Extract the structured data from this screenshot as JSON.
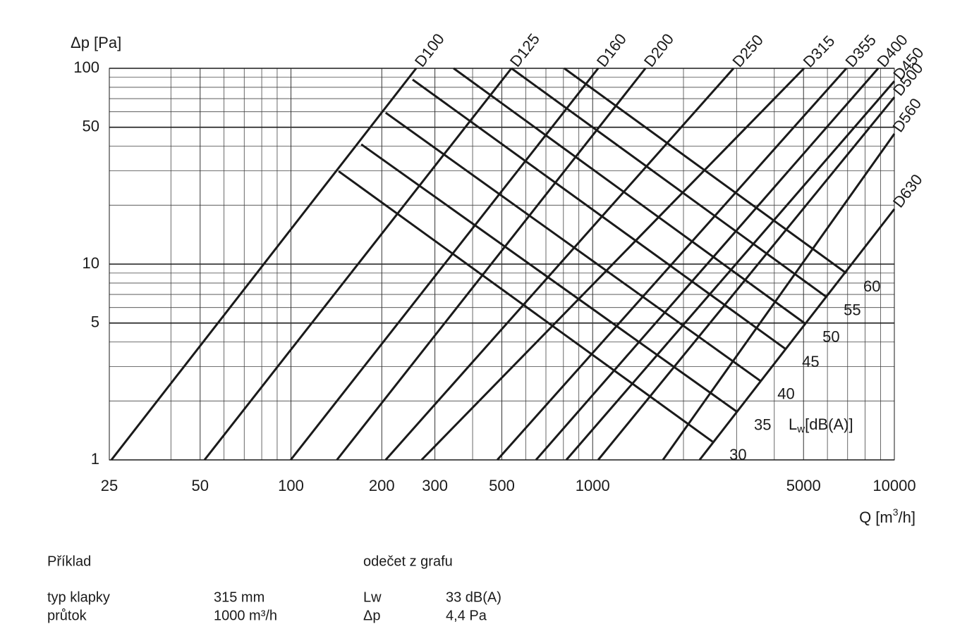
{
  "chart_data": {
    "type": "nomogram",
    "y_label": "Δp [Pa]",
    "x_label": {
      "main": "Q [m",
      "sup": "3",
      "rest": "/h]"
    },
    "xscale": "log",
    "yscale": "log",
    "xlim": [
      25,
      10000
    ],
    "ylim": [
      1,
      100
    ],
    "xticks": [
      25,
      50,
      100,
      200,
      300,
      500,
      1000,
      5000,
      10000
    ],
    "yticks": [
      1,
      5,
      10,
      50,
      100
    ],
    "xgrid": [
      40,
      60,
      70,
      80,
      90,
      400,
      600,
      700,
      800,
      900,
      2000,
      3000,
      4000,
      6000,
      7000,
      8000,
      9000
    ],
    "ygrid": [
      2,
      3,
      4,
      6,
      7,
      8,
      9,
      20,
      30,
      40,
      60,
      70,
      80,
      90
    ],
    "grid": true,
    "color": "#1a1a1a",
    "series": [
      {
        "name": "D100",
        "x": [
          25.4,
          260
        ],
        "values": [
          1,
          100
        ]
      },
      {
        "name": "D125",
        "x": [
          51.7,
          538
        ],
        "values": [
          1,
          100
        ]
      },
      {
        "name": "D160",
        "x": [
          99.8,
          1043
        ],
        "values": [
          1,
          100
        ]
      },
      {
        "name": "D200",
        "x": [
          142,
          1496
        ],
        "values": [
          1,
          100
        ]
      },
      {
        "name": "D250",
        "x": [
          206,
          2931
        ],
        "values": [
          1,
          100
        ]
      },
      {
        "name": "D315",
        "x": [
          271,
          5018
        ],
        "values": [
          1,
          100
        ]
      },
      {
        "name": "D355",
        "x": [
          483,
          6935
        ],
        "values": [
          1,
          100
        ]
      },
      {
        "name": "D400",
        "x": [
          649,
          8840
        ],
        "values": [
          1,
          100
        ]
      },
      {
        "name": "D450",
        "x": [
          818,
          10000
        ],
        "values": [
          1,
          86
        ]
      },
      {
        "name": "D500",
        "x": [
          1043,
          10000
        ],
        "values": [
          1,
          71.2
        ]
      },
      {
        "name": "D560",
        "x": [
          1710,
          10000
        ],
        "values": [
          1,
          46.3
        ]
      },
      {
        "name": "D630",
        "x": [
          2262,
          10000
        ],
        "values": [
          1,
          19.1
        ]
      }
    ],
    "lw_title": {
      "main": "L",
      "sub": "w",
      "rest": "[dB(A)]"
    },
    "lw_series": [
      {
        "name": "30",
        "x": [
          143.9,
          2496
        ],
        "values": [
          29.8,
          1.24
        ]
      },
      {
        "name": "35",
        "x": [
          171,
          3011
        ],
        "values": [
          40.9,
          1.76
        ]
      },
      {
        "name": "40",
        "x": [
          206,
          3600
        ],
        "values": [
          59.3,
          2.53
        ]
      },
      {
        "name": "45",
        "x": [
          253,
          4345
        ],
        "values": [
          87.6,
          3.7
        ]
      },
      {
        "name": "50",
        "x": [
          346,
          5078
        ],
        "values": [
          100,
          4.95
        ]
      },
      {
        "name": "55",
        "x": [
          538,
          5967
        ],
        "values": [
          100,
          6.78
        ]
      },
      {
        "name": "60",
        "x": [
          805,
          6935
        ],
        "values": [
          100,
          8.98
        ]
      }
    ]
  },
  "example": {
    "title": "Příklad",
    "read_title": "odečet z grafu",
    "rows": [
      [
        "typ klapky",
        "315 mm",
        "Lw",
        "33 dB(A)"
      ],
      [
        "průtok",
        "1000 m³/h",
        "Δp",
        "4,4 Pa"
      ]
    ]
  }
}
